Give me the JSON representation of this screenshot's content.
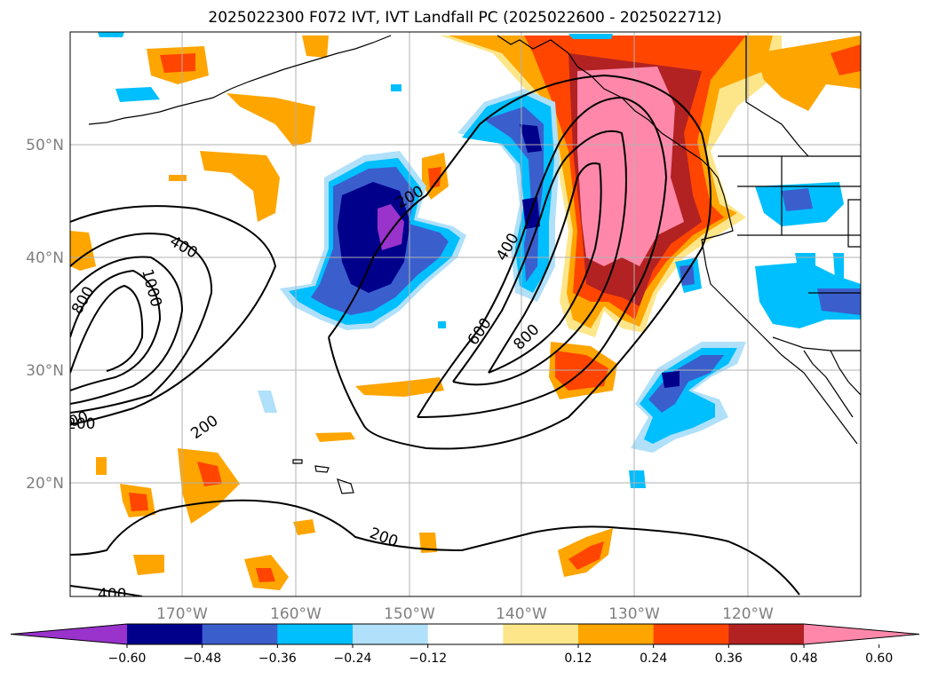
{
  "title": "2025022300 F072 IVT, IVT Landfall PC (2025022600 - 2025022712)",
  "map": {
    "lat_labels": [
      "50°N",
      "40°N",
      "30°N",
      "20°N"
    ],
    "lon_labels": [
      "170°W",
      "160°W",
      "150°W",
      "140°W",
      "130°W",
      "120°W"
    ],
    "grid": true,
    "gridline_color": "#b0b0b0",
    "coastline_color": "#000000",
    "contour_color": "#000000",
    "contour_labels": [
      "400",
      "1000",
      "800",
      "200",
      "200",
      "400",
      "600",
      "800",
      "200",
      "400",
      "200",
      "200"
    ]
  },
  "colorbar": {
    "tick_labels": [
      "−0.60",
      "−0.48",
      "−0.36",
      "−0.24",
      "−0.12",
      "0.12",
      "0.24",
      "0.36",
      "0.48",
      "0.60"
    ],
    "colors": [
      "#9933cc",
      "#00008b",
      "#3a5fcd",
      "#00bfff",
      "#b0e0fa",
      "#ffffff",
      "#fde68a",
      "#ffa500",
      "#ff4500",
      "#b22222",
      "#ff88aa"
    ]
  }
}
